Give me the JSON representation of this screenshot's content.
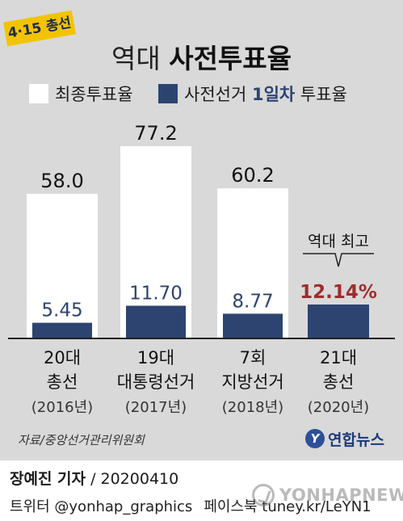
{
  "badge": "4·15 총선",
  "title": {
    "part1": "역대",
    "part2": "사전투표율"
  },
  "colors": {
    "total": "#ffffff",
    "early": "#2d4470",
    "highlight": "#a02c2c",
    "panel": "#d9d9d9"
  },
  "legend": {
    "total_label": "최종투표율",
    "early_prefix": "사전선거",
    "early_accent": "1일차",
    "early_suffix": "투표율"
  },
  "chart_data": {
    "type": "bar",
    "categories": [
      [
        "20대",
        "총선",
        "(2016년)"
      ],
      [
        "19대",
        "대통령선거",
        "(2017년)"
      ],
      [
        "7회",
        "지방선거",
        "(2018년)"
      ],
      [
        "21대",
        "총선",
        "(2020년)"
      ]
    ],
    "series": [
      {
        "name": "최종투표율",
        "values": [
          58.0,
          77.2,
          60.2,
          null
        ],
        "labels": [
          "58.0",
          "77.2",
          "60.2",
          ""
        ]
      },
      {
        "name": "사전선거 1일차 투표율",
        "values": [
          5.45,
          11.7,
          8.77,
          12.14
        ],
        "labels": [
          "5.45",
          "11.70",
          "8.77",
          "12.14%"
        ]
      }
    ],
    "annotation": {
      "text": "역대 최고",
      "category_index": 3
    },
    "highlight_index": 3,
    "ylim": [
      0,
      80
    ],
    "grid": false,
    "legend_position": "top-left"
  },
  "footer": {
    "source": "자료/중앙선거관리위원회",
    "logo_text": "연합뉴스",
    "byline_name": "장예진 기자",
    "byline_date": "/ 20200410",
    "twitter": "트위터 @yonhap_graphics",
    "facebook": "페이스북 tuney.kr/LeYN1",
    "watermark": "YONHAPNEWS"
  }
}
